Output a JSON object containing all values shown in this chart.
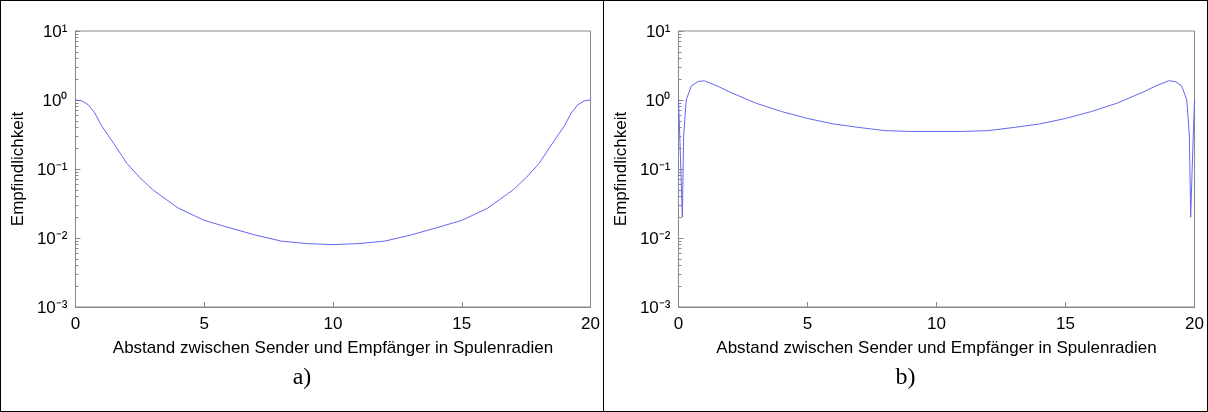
{
  "chart_data": [
    {
      "type": "line",
      "xlabel": "Abstand zwischen Sender und Empfänger in Spulenradien",
      "ylabel": "Empfindlichkeit",
      "annotations": [
        "a)"
      ],
      "x": [
        0,
        0.25,
        0.5,
        0.75,
        1,
        1.5,
        2,
        2.5,
        3,
        4,
        5,
        6,
        7,
        8,
        9,
        10,
        11,
        12,
        13,
        14,
        15,
        16,
        17,
        17.5,
        18,
        18.5,
        19,
        19.25,
        19.5,
        19.75,
        20
      ],
      "series": [
        {
          "color": "#6666ee",
          "values": [
            1.0,
            0.97,
            0.85,
            0.65,
            0.43,
            0.23,
            0.12,
            0.075,
            0.05,
            0.027,
            0.018,
            0.014,
            0.011,
            0.009,
            0.0083,
            0.008,
            0.0083,
            0.009,
            0.011,
            0.014,
            0.018,
            0.027,
            0.05,
            0.075,
            0.12,
            0.23,
            0.43,
            0.65,
            0.85,
            0.97,
            1.0
          ]
        }
      ],
      "xlim": [
        0,
        20
      ],
      "xticks": [
        0,
        5,
        10,
        15,
        20
      ],
      "ylim": [
        0.001,
        10
      ],
      "log": true,
      "yticks": [
        {
          "value": 0.001,
          "label": "10⁻³"
        },
        {
          "value": 0.01,
          "label": "10⁻²"
        },
        {
          "value": 0.1,
          "label": "10⁻¹"
        },
        {
          "value": 1,
          "label": "10⁰"
        },
        {
          "value": 10,
          "label": "10¹"
        }
      ],
      "grid": false,
      "marker": "none",
      "line_style": "solid"
    },
    {
      "type": "line",
      "xlabel": "Abstand zwischen Sender und Empfänger in Spulenradien",
      "ylabel": "Empfindlichkeit",
      "annotations": [
        "b)"
      ],
      "x": [
        0,
        0.05,
        0.1,
        0.15,
        0.2,
        0.3,
        0.5,
        0.75,
        1,
        1.5,
        2,
        3,
        4,
        5,
        6,
        7,
        8,
        9,
        10,
        11,
        12,
        13,
        14,
        15,
        16,
        17,
        18,
        18.5,
        19,
        19.25,
        19.5,
        19.7,
        19.8,
        19.85,
        19.9,
        19.95,
        20
      ],
      "series": [
        {
          "color": "#6666ee",
          "values": [
            1.0,
            0.3,
            0.08,
            0.02,
            0.3,
            1.0,
            1.6,
            1.85,
            1.9,
            1.6,
            1.3,
            0.9,
            0.68,
            0.54,
            0.45,
            0.4,
            0.36,
            0.35,
            0.35,
            0.35,
            0.36,
            0.4,
            0.45,
            0.54,
            0.68,
            0.9,
            1.3,
            1.6,
            1.9,
            1.85,
            1.6,
            1.0,
            0.3,
            0.02,
            0.08,
            0.3,
            1.0
          ]
        }
      ],
      "xlim": [
        0,
        20
      ],
      "xticks": [
        0,
        5,
        10,
        15,
        20
      ],
      "ylim": [
        0.001,
        10
      ],
      "log": true,
      "yticks": [
        {
          "value": 0.001,
          "label": "10⁻³"
        },
        {
          "value": 0.01,
          "label": "10⁻²"
        },
        {
          "value": 0.1,
          "label": "10⁻¹"
        },
        {
          "value": 1,
          "label": "10⁰"
        },
        {
          "value": 10,
          "label": "10¹"
        }
      ],
      "grid": false,
      "marker": "none",
      "line_style": "solid"
    }
  ]
}
